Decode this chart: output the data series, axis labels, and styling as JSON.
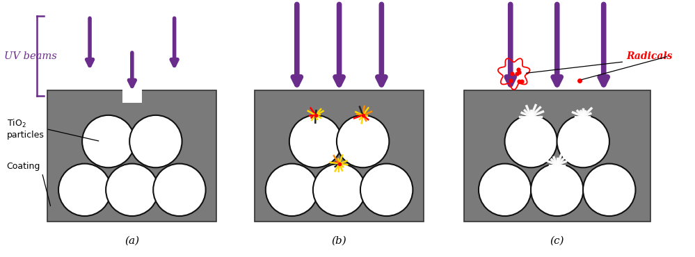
{
  "bg_color": "#ffffff",
  "gray_color": "#7a7a7a",
  "purple_color": "#6B2D8B",
  "particle_color": "#ffffff",
  "particle_edge": "#111111",
  "uv_label": "UV beams",
  "tio2_label": "TiO₂\nparticles",
  "coating_label": "Coating",
  "radicals_label": "Radicals",
  "label_a": "(a)",
  "label_b": "(b)",
  "label_c": "(c)"
}
